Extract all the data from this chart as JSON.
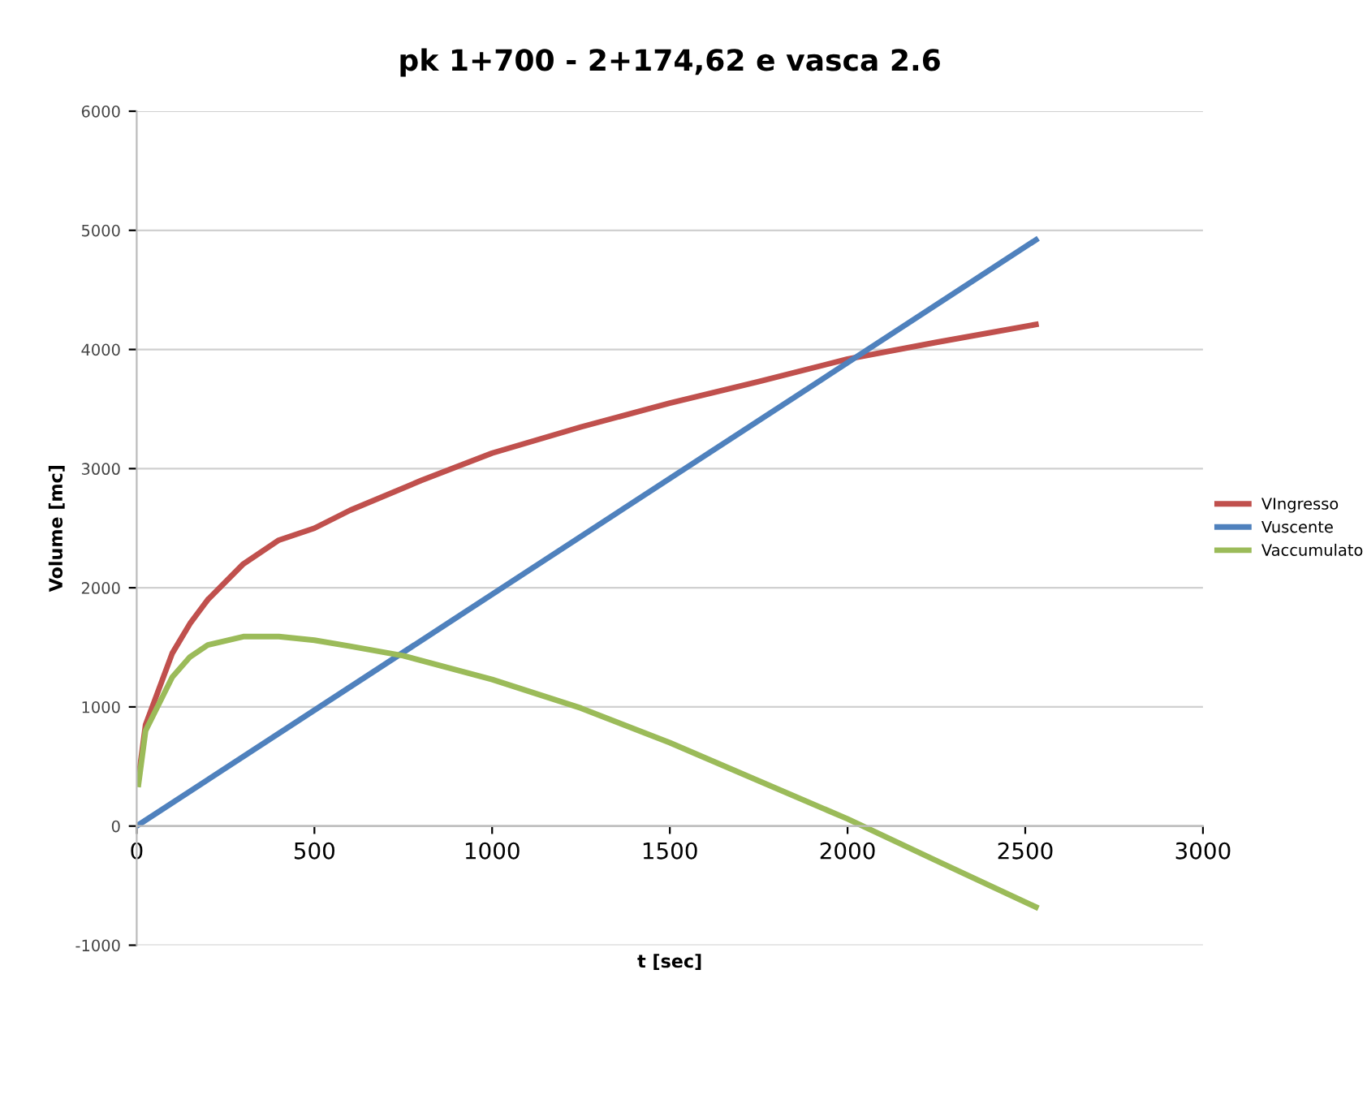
{
  "chart_data": {
    "type": "line",
    "title": "pk 1+700 - 2+174,62 e vasca 2.6",
    "xlabel": "t [sec]",
    "ylabel": "Volume [mc]",
    "xlim": [
      0,
      3000
    ],
    "xticks": [
      0,
      500,
      1000,
      1500,
      2000,
      2500,
      3000
    ],
    "ylim": [
      -1000,
      6000
    ],
    "yticks": [
      -1000,
      0,
      1000,
      2000,
      3000,
      4000,
      5000,
      6000
    ],
    "grid": "y",
    "legend": "right",
    "line_style": "solid",
    "series": [
      {
        "name": "VIngresso",
        "color": "#c0504d",
        "x": [
          5,
          25,
          50,
          100,
          150,
          200,
          300,
          400,
          500,
          600,
          800,
          1000,
          1250,
          1500,
          1750,
          2000,
          2250,
          2530
        ],
        "values": [
          400,
          850,
          1050,
          1450,
          1700,
          1900,
          2200,
          2400,
          2500,
          2650,
          2900,
          3130,
          3350,
          3550,
          3730,
          3920,
          4060,
          4210
        ]
      },
      {
        "name": "Vuscente",
        "color": "#4f81bd",
        "x": [
          0,
          2530
        ],
        "values": [
          0,
          4920
        ]
      },
      {
        "name": "Vaccumulato",
        "color": "#9bbb59",
        "x": [
          5,
          25,
          50,
          100,
          150,
          200,
          300,
          400,
          500,
          600,
          750,
          1000,
          1250,
          1500,
          1750,
          2000,
          2250,
          2530
        ],
        "values": [
          350,
          800,
          950,
          1250,
          1420,
          1520,
          1590,
          1590,
          1560,
          1510,
          1430,
          1230,
          990,
          700,
          380,
          60,
          -290,
          -680
        ]
      }
    ]
  }
}
